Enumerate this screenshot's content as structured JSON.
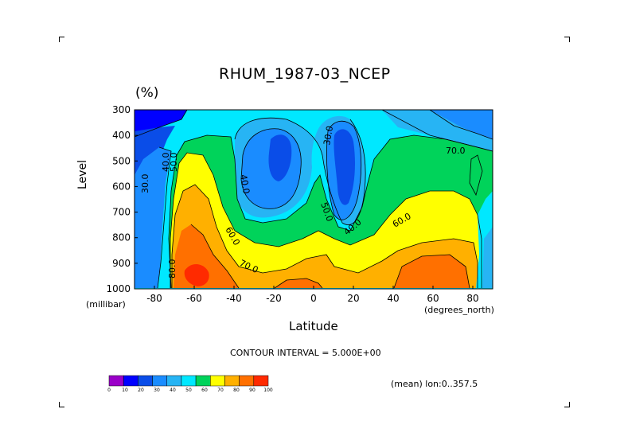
{
  "chart_data": {
    "type": "heatmap",
    "subtype": "filled-contour",
    "title": "RHUM_1987-03_NCEP",
    "units_label": "(%)",
    "xlabel": "Latitude",
    "x_unit_label": "(degrees_north)",
    "ylabel": "Level",
    "y_unit_label": "(millibar)",
    "x_ticks": [
      "-80",
      "-60",
      "-40",
      "-20",
      "0",
      "20",
      "40",
      "60",
      "80"
    ],
    "y_ticks": [
      "300",
      "400",
      "500",
      "600",
      "700",
      "800",
      "900",
      "1000"
    ],
    "xlim": [
      -90,
      90
    ],
    "ylim": [
      1000,
      300
    ],
    "contour_labels": [
      "30.0",
      "40.0",
      "50.0",
      "60.0",
      "70.0",
      "80.0",
      "30.0",
      "40.0",
      "50.0",
      "60.0",
      "70.0",
      "40.0",
      "50.0",
      "60.0",
      "50.0"
    ],
    "footer": {
      "contour_interval": "CONTOUR INTERVAL = 5.000E+00",
      "mean_note": "(mean) lon:0..357.5"
    },
    "colorbar": {
      "ticks": [
        "0",
        "10",
        "20",
        "30",
        "40",
        "50",
        "60",
        "70",
        "80",
        "90",
        "100"
      ],
      "colors": [
        "#9a00c8",
        "#0000ff",
        "#0a4de8",
        "#1a8cff",
        "#27b4f4",
        "#00e8ff",
        "#00d35a",
        "#ffff00",
        "#ffb000",
        "#ff7000",
        "#ff2a00"
      ]
    },
    "grid": false
  }
}
